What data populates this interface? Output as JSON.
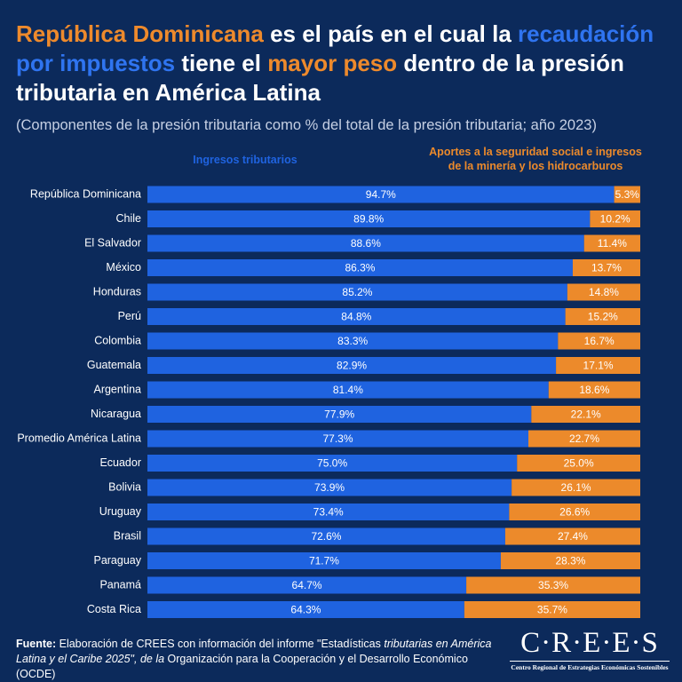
{
  "chart_data": {
    "type": "stacked-bar-horizontal",
    "title": [
      {
        "text": "República Dominicana",
        "color": "#ee8a2c"
      },
      {
        "text": " es el país en el cual la ",
        "color": "#ffffff"
      },
      {
        "text": "recaudación por impuestos",
        "color": "#2f74f0"
      },
      {
        "text": " tiene el ",
        "color": "#ffffff"
      },
      {
        "text": "mayor peso",
        "color": "#ee8a2c"
      },
      {
        "text": " dentro de la presión tributaria en América Latina",
        "color": "#ffffff"
      }
    ],
    "subtitle": "(Componentes de la presión tributaria como % del total de la presión tributaria; año 2023)",
    "categories": [
      "República Dominicana",
      "Chile",
      "El Salvador",
      "México",
      "Honduras",
      "Perú",
      "Colombia",
      "Guatemala",
      "Argentina",
      "Nicaragua",
      "Promedio América Latina",
      "Ecuador",
      "Bolivia",
      "Uruguay",
      "Brasil",
      "Paraguay",
      "Panamá",
      "Costa Rica"
    ],
    "xlim": [
      0,
      100
    ],
    "series": [
      {
        "name": "Ingresos tributarios",
        "color": "#1f63e0",
        "values": [
          94.7,
          89.8,
          88.6,
          86.3,
          85.2,
          84.8,
          83.3,
          82.9,
          81.4,
          77.9,
          77.3,
          75.0,
          73.9,
          73.4,
          72.6,
          71.7,
          64.7,
          64.3
        ],
        "value_labels": [
          "94.7%",
          "89.8%",
          "88.6%",
          "86.3%",
          "85.2%",
          "84.8%",
          "83.3%",
          "82.9%",
          "81.4%",
          "77.9%",
          "77.3%",
          "75.0%",
          "73.9%",
          "73.4%",
          "72.6%",
          "71.7%",
          "64.7%",
          "64.3%"
        ]
      },
      {
        "name": "Aportes a la seguridad social e ingresos de la minería y los hidrocarburos",
        "color": "#ec8a2b",
        "values": [
          5.3,
          10.2,
          11.4,
          13.7,
          14.8,
          15.2,
          16.7,
          17.1,
          18.6,
          22.1,
          22.7,
          25.0,
          26.1,
          26.6,
          27.4,
          28.3,
          35.3,
          35.7
        ],
        "value_labels": [
          "5.3%",
          "10.2%",
          "11.4%",
          "13.7%",
          "14.8%",
          "15.2%",
          "16.7%",
          "17.1%",
          "18.6%",
          "22.1%",
          "22.7%",
          "25.0%",
          "26.1%",
          "26.6%",
          "27.4%",
          "28.3%",
          "35.3%",
          "35.7%"
        ]
      }
    ],
    "source": [
      {
        "text": "Fuente:",
        "bold": true
      },
      {
        "text": " Elaboración de CREES con información del informe \"Estadísticas "
      },
      {
        "text": "tributarias en América Latina y el Caribe 2025\", de la",
        "italic": true
      },
      {
        "text": " Organización para la Cooperación y el Desarrollo Económico (OCDE)"
      }
    ],
    "logo": {
      "name": "C·R·E·E·S",
      "tagline": "Centro Regional de Estrategias Económicas Sostenibles"
    }
  }
}
